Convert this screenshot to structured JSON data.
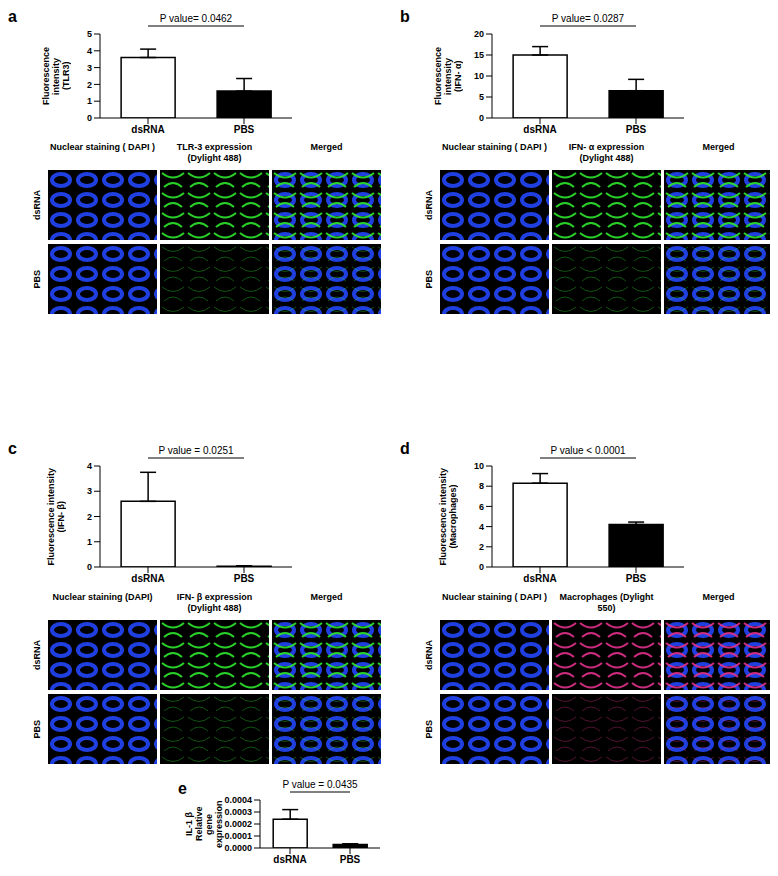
{
  "chart_data": [
    {
      "type": "bar",
      "panel": "a",
      "annotation": "P value= 0.0462",
      "y_label": [
        "Fluorescence intensity",
        "(TLR3)"
      ],
      "categories": [
        "dsRNA",
        "PBS"
      ],
      "values": [
        3.6,
        1.6
      ],
      "errors": [
        0.5,
        0.75
      ],
      "colors": [
        "#ffffff",
        "#000000"
      ],
      "ylim": [
        0,
        5
      ],
      "yticks": [
        0,
        1,
        2,
        3,
        4,
        5
      ]
    },
    {
      "type": "bar",
      "panel": "b",
      "annotation": "P value= 0.0287",
      "y_label": [
        "Fluorescence intensity",
        "(IFN- α)"
      ],
      "categories": [
        "dsRNA",
        "PBS"
      ],
      "values": [
        15,
        6.5
      ],
      "errors": [
        2,
        2.7
      ],
      "colors": [
        "#ffffff",
        "#000000"
      ],
      "ylim": [
        0,
        20
      ],
      "yticks": [
        0,
        5,
        10,
        15,
        20
      ]
    },
    {
      "type": "bar",
      "panel": "c",
      "annotation": "P value = 0.0251",
      "y_label": [
        "Fluorescence intensity",
        "(IFN- β)"
      ],
      "categories": [
        "dsRNA",
        "PBS"
      ],
      "values": [
        2.6,
        0.03
      ],
      "errors": [
        1.15,
        0.02
      ],
      "colors": [
        "#ffffff",
        "#000000"
      ],
      "ylim": [
        0,
        4
      ],
      "yticks": [
        0,
        1,
        2,
        3,
        4
      ]
    },
    {
      "type": "bar",
      "panel": "d",
      "annotation": "P value < 0.0001",
      "y_label": [
        "Fluorescence intensity",
        "(Macrophages)"
      ],
      "categories": [
        "dsRNA",
        "PBS"
      ],
      "values": [
        8.3,
        4.2
      ],
      "errors": [
        0.95,
        0.25
      ],
      "colors": [
        "#ffffff",
        "#000000"
      ],
      "ylim": [
        0,
        10
      ],
      "yticks": [
        0,
        2,
        4,
        6,
        8,
        10
      ]
    },
    {
      "type": "bar",
      "panel": "e",
      "annotation": "P value = 0.0435",
      "y_label": [
        "IL-1 β",
        "Relative gene expression"
      ],
      "categories": [
        "dsRNA",
        "PBS"
      ],
      "values": [
        0.00024,
        3e-05
      ],
      "errors": [
        8e-05,
        5e-06
      ],
      "colors": [
        "#ffffff",
        "#000000"
      ],
      "ylim": [
        0,
        0.0004
      ],
      "yticks": [
        {
          "value": 0,
          "label": "0.0000"
        },
        {
          "value": 0.0001,
          "label": "0.0001"
        },
        {
          "value": 0.0002,
          "label": "0.0002"
        },
        {
          "value": 0.0003,
          "label": "0.0003"
        },
        {
          "value": 0.0004,
          "label": "0.0004"
        }
      ]
    }
  ],
  "image_grids": [
    {
      "panel": "a",
      "columns": [
        "Nuclear staining ( DAPI )",
        "TLR-3 expression (Dylight 488)",
        "Merged"
      ],
      "rows": [
        "dsRNA",
        "PBS"
      ]
    },
    {
      "panel": "b",
      "columns": [
        "Nuclear staining ( DAPI )",
        "IFN- α expression (Dylight 488)",
        "Merged"
      ],
      "rows": [
        "dsRNA",
        "PBS"
      ]
    },
    {
      "panel": "c",
      "columns": [
        "Nuclear staining (DAPI)",
        "IFN- β expression (Dylight 488)",
        "Merged"
      ],
      "rows": [
        "dsRNA",
        "PBS"
      ]
    },
    {
      "panel": "d",
      "columns": [
        "Nuclear staining ( DAPI )",
        "Macrophages (Dylight 550)",
        "Merged"
      ],
      "rows": [
        "dsRNA",
        "PBS"
      ]
    }
  ]
}
